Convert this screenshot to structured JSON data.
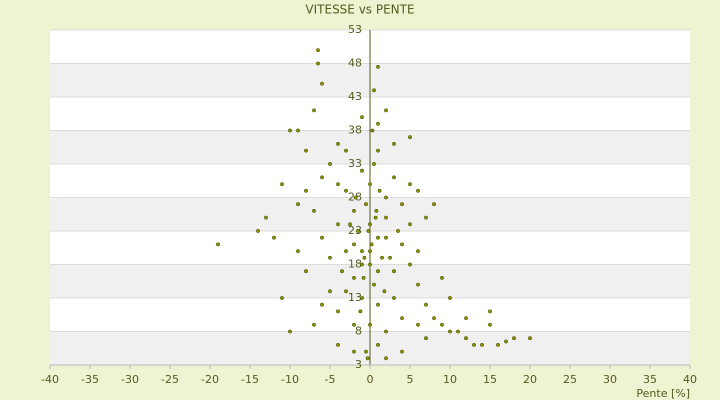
{
  "chart_data": {
    "type": "scatter",
    "title": "VITESSE vs PENTE",
    "x_label": "Pente [%]",
    "color": "#8c9400",
    "xlim": [
      -40,
      40
    ],
    "ylim": [
      3,
      53
    ],
    "xticks": [
      -40,
      -35,
      -30,
      -25,
      -20,
      -15,
      -10,
      -5,
      0,
      5,
      10,
      15,
      20,
      25,
      30,
      35,
      40
    ],
    "yticks": [
      3,
      8,
      13,
      18,
      23,
      28,
      33,
      38,
      43,
      48,
      53
    ],
    "grid": true,
    "x": [
      -6.5,
      -6.5,
      -6,
      1,
      0.5,
      -19,
      20,
      18,
      17,
      15,
      15,
      -7,
      2,
      5,
      -9,
      -10,
      -8,
      -11,
      -14,
      -13,
      12,
      10,
      0,
      1,
      -1,
      2,
      -2,
      0.5,
      -0.5,
      1.5,
      -1.5,
      3,
      -3,
      0,
      1,
      -1,
      2,
      -2,
      4,
      -4,
      0,
      0.5,
      -0.5,
      1,
      3,
      -3,
      5,
      -5,
      6,
      -6,
      7,
      -7,
      2,
      -2,
      4,
      -4,
      8,
      -8,
      1,
      -1,
      3,
      -3,
      2,
      -2,
      0,
      1,
      -1,
      0.3,
      -0.3,
      4,
      -4,
      5,
      -5,
      6,
      -6,
      7,
      -7,
      9,
      -9,
      10,
      -10,
      11,
      -11,
      12,
      -12,
      13,
      3,
      -3,
      5,
      -5,
      6,
      8,
      -8,
      4,
      -4,
      2,
      -2,
      0.8,
      -0.8,
      1.2,
      -1.2,
      2.5,
      -2.5,
      3.5,
      -3.5,
      1.8,
      -1.8,
      0,
      0.2,
      -0.2,
      0.7,
      -0.7,
      14,
      16,
      9,
      -9,
      7,
      -6,
      6,
      -1,
      1,
      -4
    ],
    "y": [
      50,
      48,
      45,
      47.5,
      44,
      21,
      7,
      7,
      6.5,
      11,
      9,
      41,
      41,
      37,
      38,
      38,
      35,
      30,
      23,
      25,
      7,
      8,
      20,
      22,
      18,
      25,
      21,
      15,
      27,
      19,
      23,
      17,
      20,
      30,
      12,
      13,
      28,
      16,
      21,
      24,
      9,
      33,
      5,
      6,
      13,
      14,
      18,
      19,
      15,
      22,
      12,
      26,
      8,
      9,
      10,
      11,
      10,
      17,
      35,
      32,
      31,
      29,
      22,
      26,
      24,
      17,
      20,
      38,
      4,
      27,
      30,
      24,
      14,
      20,
      12,
      25,
      9,
      9,
      20,
      13,
      8,
      8,
      13,
      10,
      22,
      6,
      36,
      35,
      30,
      33,
      29,
      27,
      29,
      5,
      6,
      4,
      5,
      26,
      16,
      29,
      11,
      19,
      24,
      23,
      17,
      14,
      28,
      18,
      21,
      23,
      25,
      19,
      6,
      6,
      16,
      27,
      7,
      31,
      9,
      40,
      39,
      36
    ]
  }
}
